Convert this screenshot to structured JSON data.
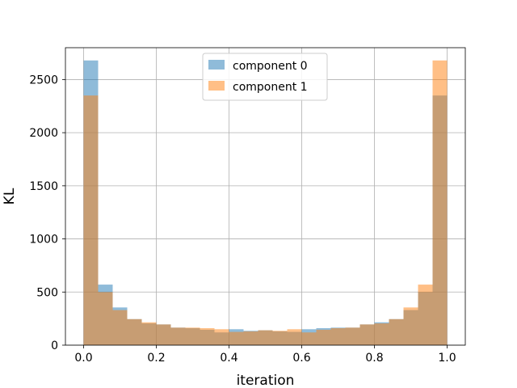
{
  "chart_data": {
    "type": "histogram",
    "title": "",
    "xlabel": "iteration",
    "ylabel": "KL",
    "xlim": [
      -0.05,
      1.05
    ],
    "ylim": [
      0,
      2800
    ],
    "bins": 25,
    "bin_range": [
      0.0,
      1.0
    ],
    "grid": true,
    "legend_position": "top-center",
    "x_ticks": [
      {
        "value": 0.0,
        "label": "0.0"
      },
      {
        "value": 0.2,
        "label": "0.2"
      },
      {
        "value": 0.4,
        "label": "0.4"
      },
      {
        "value": 0.6,
        "label": "0.6"
      },
      {
        "value": 0.8,
        "label": "0.8"
      },
      {
        "value": 1.0,
        "label": "1.0"
      }
    ],
    "y_ticks": [
      {
        "value": 0,
        "label": "0"
      },
      {
        "value": 500,
        "label": "500"
      },
      {
        "value": 1000,
        "label": "1000"
      },
      {
        "value": 1500,
        "label": "1500"
      },
      {
        "value": 2000,
        "label": "2000"
      },
      {
        "value": 2500,
        "label": "2500"
      }
    ],
    "series": [
      {
        "name": "component 0",
        "color": "#1f77b4",
        "alpha": 0.5,
        "values": [
          2680,
          570,
          355,
          245,
          205,
          195,
          165,
          160,
          145,
          120,
          150,
          135,
          140,
          130,
          125,
          150,
          160,
          165,
          165,
          195,
          215,
          245,
          330,
          500,
          2350
        ]
      },
      {
        "name": "component 1",
        "color": "#ff7f0e",
        "alpha": 0.5,
        "values": [
          2350,
          500,
          330,
          245,
          215,
          195,
          165,
          165,
          160,
          150,
          125,
          130,
          140,
          135,
          150,
          120,
          145,
          160,
          165,
          195,
          205,
          245,
          355,
          570,
          2680
        ]
      }
    ]
  }
}
